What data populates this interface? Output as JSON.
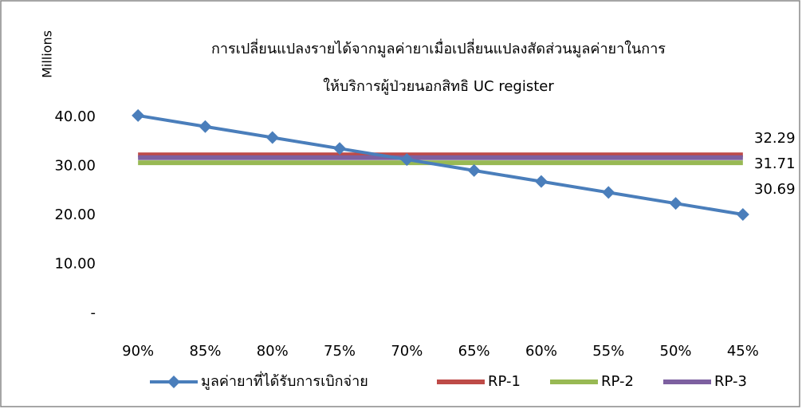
{
  "chart_data": {
    "type": "line",
    "title": [
      "การเปลี่ยนแปลงรายได้จากมูลค่ายาเมื่อเปลี่ยนแปลงสัดส่วนมูลค่ายาในการ",
      "ให้บริการผู้ป่วยนอกสิทธิ UC register"
    ],
    "y_label": "Millions",
    "categories": [
      "90%",
      "85%",
      "80%",
      "75%",
      "70%",
      "65%",
      "60%",
      "55%",
      "50%",
      "45%"
    ],
    "series": [
      {
        "name": "มูลค่ายาที่ได้รับการเบิกจ่าย",
        "color": "#4a7ebb",
        "marker": "diamond",
        "values": [
          40.3,
          38.06,
          35.82,
          33.58,
          31.34,
          29.1,
          26.87,
          24.63,
          22.39,
          20.15
        ]
      },
      {
        "name": "RP-1",
        "color": "#be4b48",
        "values": [
          32.29,
          32.29,
          32.29,
          32.29,
          32.29,
          32.29,
          32.29,
          32.29,
          32.29,
          32.29
        ],
        "label_last": true
      },
      {
        "name": "RP-2",
        "color": "#98b954",
        "values": [
          30.69,
          30.69,
          30.69,
          30.69,
          30.69,
          30.69,
          30.69,
          30.69,
          30.69,
          30.69
        ],
        "label_last": true
      },
      {
        "name": "RP-3",
        "color": "#7d60a0",
        "values": [
          31.71,
          31.71,
          31.71,
          31.71,
          31.71,
          31.71,
          31.71,
          31.71,
          31.71,
          31.71
        ],
        "label_last": true
      }
    ],
    "ylim": [
      0,
      45
    ],
    "yticks": [
      {
        "value": 0,
        "label": "-"
      },
      {
        "value": 10,
        "label": "10.00"
      },
      {
        "value": 20,
        "label": "20.00"
      },
      {
        "value": 30,
        "label": "30.00"
      },
      {
        "value": 40,
        "label": "40.00"
      }
    ],
    "legend": "bottom",
    "grid": false
  }
}
